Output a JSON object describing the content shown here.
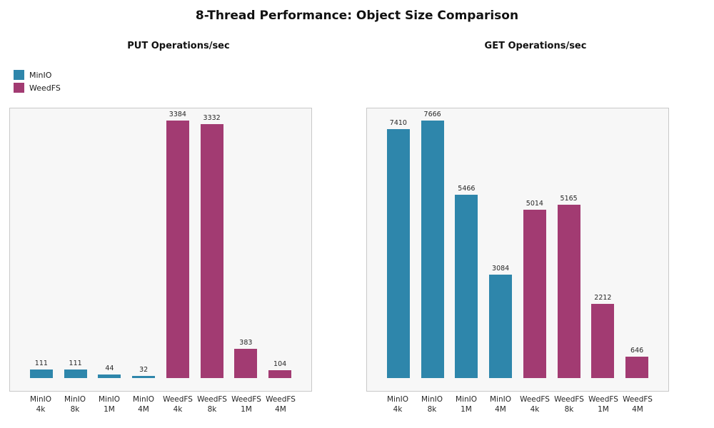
{
  "title": "8-Thread Performance: Object Size Comparison",
  "colors": {
    "minio": "#2E86AB",
    "weedfs": "#A23B72",
    "panel_bg": "#f7f7f7",
    "panel_border": "#c9c9c9"
  },
  "legend": {
    "position": "upper left of figure",
    "items": [
      {
        "label": "MinIO",
        "series": "minio",
        "color": "#2E86AB"
      },
      {
        "label": "WeedFS",
        "series": "weedfs",
        "color": "#A23B72"
      }
    ]
  },
  "chart_data": [
    {
      "type": "bar",
      "title": "PUT Operations/sec",
      "categories": [
        {
          "line1": "MinIO",
          "line2": "4k"
        },
        {
          "line1": "MinIO",
          "line2": "8k"
        },
        {
          "line1": "MinIO",
          "line2": "1M"
        },
        {
          "line1": "MinIO",
          "line2": "4M"
        },
        {
          "line1": "WeedFS",
          "line2": "4k"
        },
        {
          "line1": "WeedFS",
          "line2": "8k"
        },
        {
          "line1": "WeedFS",
          "line2": "1M"
        },
        {
          "line1": "WeedFS",
          "line2": "4M"
        }
      ],
      "values": [
        111,
        111,
        44,
        32,
        3384,
        3332,
        383,
        104
      ],
      "bar_series": [
        "minio",
        "minio",
        "minio",
        "minio",
        "weedfs",
        "weedfs",
        "weedfs",
        "weedfs"
      ],
      "value_labels": [
        "111",
        "111",
        "44",
        "32",
        "3384",
        "3332",
        "383",
        "104"
      ],
      "xlabel": "",
      "ylabel": "",
      "ylim": [
        0,
        3560
      ],
      "grid": false,
      "yaxis_ticks_visible": false
    },
    {
      "type": "bar",
      "title": "GET Operations/sec",
      "categories": [
        {
          "line1": "MinIO",
          "line2": "4k"
        },
        {
          "line1": "MinIO",
          "line2": "8k"
        },
        {
          "line1": "MinIO",
          "line2": "1M"
        },
        {
          "line1": "MinIO",
          "line2": "4M"
        },
        {
          "line1": "WeedFS",
          "line2": "4k"
        },
        {
          "line1": "WeedFS",
          "line2": "8k"
        },
        {
          "line1": "WeedFS",
          "line2": "1M"
        },
        {
          "line1": "WeedFS",
          "line2": "4M"
        }
      ],
      "values": [
        7410,
        7666,
        5466,
        3084,
        5014,
        5165,
        2212,
        646
      ],
      "bar_series": [
        "minio",
        "minio",
        "minio",
        "minio",
        "weedfs",
        "weedfs",
        "weedfs",
        "weedfs"
      ],
      "value_labels": [
        "7410",
        "7666",
        "5466",
        "3084",
        "5014",
        "5165",
        "2212",
        "646"
      ],
      "xlabel": "",
      "ylabel": "",
      "ylim": [
        0,
        8070
      ],
      "grid": false,
      "yaxis_ticks_visible": false
    }
  ]
}
